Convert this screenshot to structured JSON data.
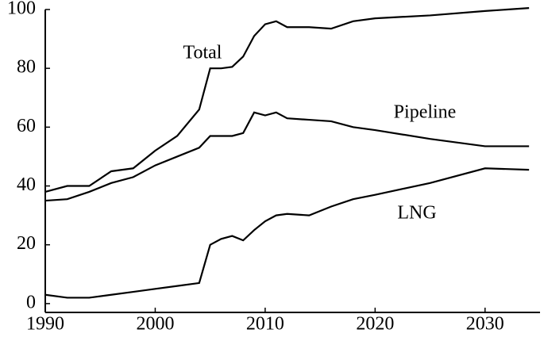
{
  "chart_data": {
    "type": "line",
    "x": [
      1990,
      1992,
      1994,
      1996,
      1998,
      2000,
      2002,
      2004,
      2005,
      2006,
      2007,
      2008,
      2009,
      2010,
      2011,
      2012,
      2014,
      2016,
      2018,
      2020,
      2025,
      2030,
      2034
    ],
    "series": [
      {
        "name": "Total",
        "color": "#000000",
        "values": [
          38,
          40,
          40,
          45,
          46,
          52,
          57,
          66,
          80,
          80,
          80.5,
          84,
          91,
          95,
          96,
          94,
          94,
          93.5,
          96,
          97,
          98,
          99.5,
          100.5
        ]
      },
      {
        "name": "Pipeline",
        "color": "#000000",
        "values": [
          35,
          35.5,
          38,
          41,
          43,
          47,
          50,
          53,
          57,
          57,
          57,
          58,
          65,
          64,
          65,
          63,
          62.5,
          62,
          60,
          59,
          56,
          53.5,
          53.5
        ]
      },
      {
        "name": "LNG",
        "color": "#000000",
        "values": [
          3,
          2,
          2,
          3,
          4,
          5,
          6,
          7,
          20,
          22,
          23,
          21.5,
          25,
          28,
          30,
          30.5,
          30,
          33,
          35.5,
          37,
          41,
          46,
          45.5
        ]
      }
    ],
    "xlim": [
      1990,
      2035
    ],
    "xticks": [
      1990,
      2000,
      2010,
      2020,
      2030
    ],
    "ylim": [
      -3,
      100
    ],
    "yticks": [
      0,
      20,
      40,
      60,
      80,
      100
    ]
  }
}
